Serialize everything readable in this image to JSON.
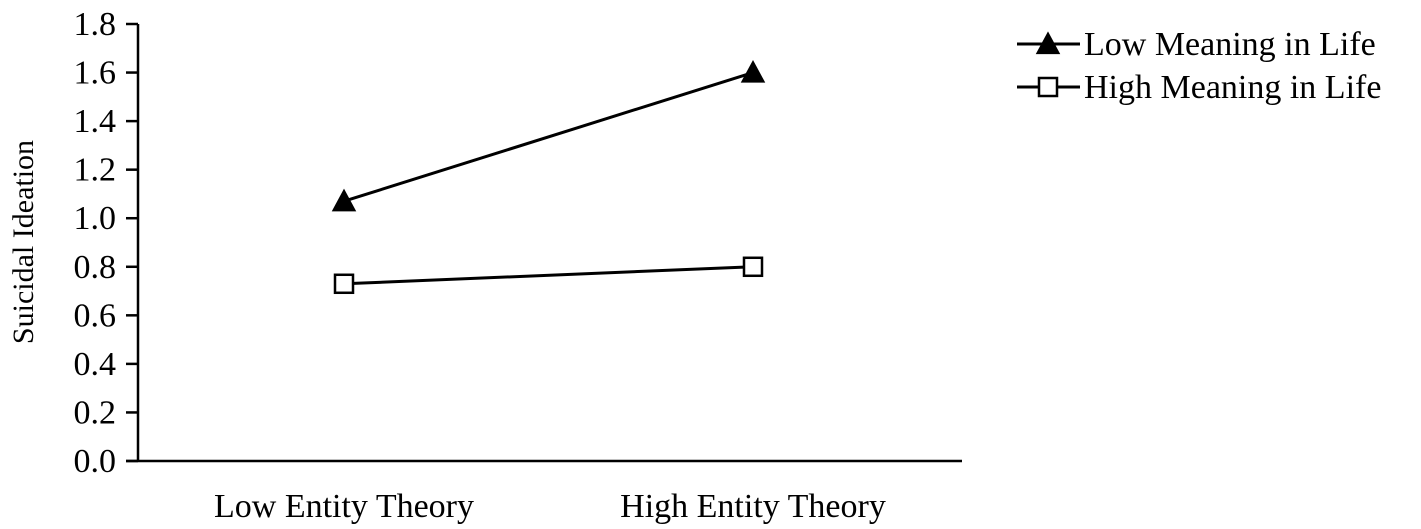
{
  "chart_data": {
    "type": "line",
    "title": "",
    "xlabel": "",
    "ylabel": "Suicidal Ideation",
    "categories": [
      "Low Entity Theory",
      "High Entity Theory"
    ],
    "ylim": [
      0.0,
      1.8
    ],
    "yticks": [
      "0.0",
      "0.2",
      "0.4",
      "0.6",
      "0.8",
      "1.0",
      "1.2",
      "1.4",
      "1.6",
      "1.8"
    ],
    "grid": false,
    "legend_position": "top-right",
    "series": [
      {
        "name": "Low Meaning in Life",
        "marker": "filled-triangle",
        "color": "#000000",
        "values": [
          1.07,
          1.6
        ]
      },
      {
        "name": "High Meaning in Life",
        "marker": "open-square",
        "color": "#000000",
        "values": [
          0.73,
          0.8
        ]
      }
    ]
  }
}
